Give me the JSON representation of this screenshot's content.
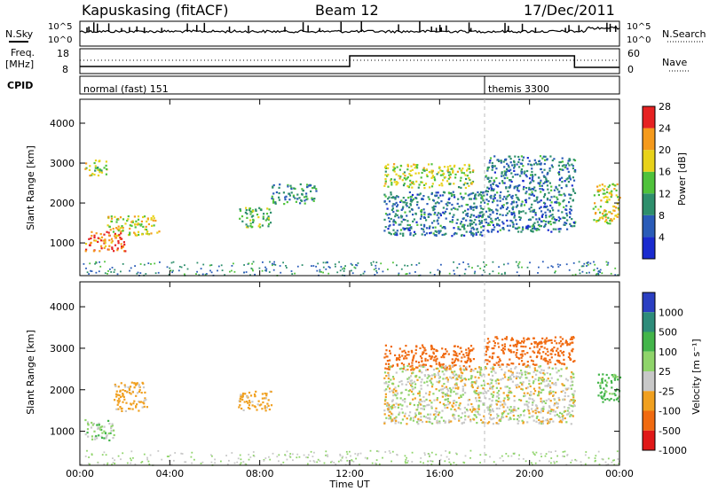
{
  "header": {
    "station": "Kapuskasing (fitACF)",
    "beam": "Beam 12",
    "date": "17/Dec/2011"
  },
  "noise_panel": {
    "left_label": "N.Sky",
    "right_label": "N.Search",
    "left_ticks": [
      "10^5",
      "10^0"
    ],
    "right_ticks": [
      "10^5",
      "10^0"
    ]
  },
  "freq_panel": {
    "left_label_line1": "Freq.",
    "left_label_line2": "[MHz]",
    "left_ticks": [
      "18",
      "8"
    ],
    "right_label": "Nave",
    "right_ticks": [
      "60",
      "0"
    ]
  },
  "cpid_panel": {
    "label": "CPID",
    "modes": [
      {
        "name": "normal (fast) 151",
        "start_hour": 0
      },
      {
        "name": "themis 3300",
        "start_hour": 18
      }
    ]
  },
  "chart_data": [
    {
      "type": "heatmap",
      "name": "power",
      "ylabel": "Slant Range [km]",
      "ylim": [
        180,
        4600
      ],
      "yticks": [
        1000,
        2000,
        3000,
        4000
      ],
      "xlim": [
        0,
        24
      ],
      "colorbar": {
        "label": "Power [dB]",
        "levels": [
          "4",
          "8",
          "12",
          "16",
          "20",
          "24",
          "28"
        ],
        "colors": [
          "#1a2bcf",
          "#2a5cb8",
          "#2e8f6c",
          "#4fc23b",
          "#e8d21a",
          "#f59a1c",
          "#e62222"
        ]
      },
      "echo_regions": [
        {
          "hour_start": 0.2,
          "hour_end": 2.0,
          "range_km": [
            800,
            1300
          ],
          "power_db": 26
        },
        {
          "hour_start": 1.2,
          "hour_end": 3.5,
          "range_km": [
            1200,
            1700
          ],
          "power_db": 20
        },
        {
          "hour_start": 0.2,
          "hour_end": 1.2,
          "range_km": [
            2700,
            3100
          ],
          "power_db": 18
        },
        {
          "hour_start": 7.0,
          "hour_end": 8.5,
          "range_km": [
            1400,
            1900
          ],
          "power_db": 15
        },
        {
          "hour_start": 8.5,
          "hour_end": 10.5,
          "range_km": [
            2000,
            2500
          ],
          "power_db": 12
        },
        {
          "hour_start": 13.5,
          "hour_end": 17.5,
          "range_km": [
            2400,
            3000
          ],
          "power_db": 18
        },
        {
          "hour_start": 13.5,
          "hour_end": 18.0,
          "range_km": [
            1200,
            2300
          ],
          "power_db": 10
        },
        {
          "hour_start": 18.0,
          "hour_end": 22.0,
          "range_km": [
            1300,
            3200
          ],
          "power_db": 10
        },
        {
          "hour_start": 22.8,
          "hour_end": 24.0,
          "range_km": [
            1500,
            2500
          ],
          "power_db": 20
        }
      ]
    },
    {
      "type": "heatmap",
      "name": "velocity",
      "ylabel": "Slant Range [km]",
      "xlabel": "Time UT",
      "ylim": [
        180,
        4600
      ],
      "yticks": [
        1000,
        2000,
        3000,
        4000
      ],
      "xlim": [
        0,
        24
      ],
      "xticks": [
        "00:00",
        "04:00",
        "08:00",
        "12:00",
        "16:00",
        "20:00",
        "00:00"
      ],
      "colorbar": {
        "label": "Velocity [m s⁻¹]",
        "levels": [
          "1000",
          "500",
          "100",
          "25",
          "-25",
          "-100",
          "-500",
          "-1000"
        ],
        "colors": [
          "#2b3fc2",
          "#2e8c7a",
          "#43b54a",
          "#8fd46a",
          "#c8c8c8",
          "#f0a020",
          "#f06a10",
          "#e01818"
        ]
      },
      "echo_regions": [
        {
          "hour_start": 0.2,
          "hour_end": 1.5,
          "range_km": [
            800,
            1300
          ],
          "velocity": 25
        },
        {
          "hour_start": 1.5,
          "hour_end": 3.0,
          "range_km": [
            1500,
            2200
          ],
          "velocity": -100
        },
        {
          "hour_start": 7.0,
          "hour_end": 8.5,
          "range_km": [
            1500,
            2000
          ],
          "velocity": -100
        },
        {
          "hour_start": 13.5,
          "hour_end": 17.5,
          "range_km": [
            2500,
            3100
          ],
          "velocity": -500
        },
        {
          "hour_start": 13.5,
          "hour_end": 22.0,
          "range_km": [
            1200,
            2600
          ],
          "velocity": -25
        },
        {
          "hour_start": 18.0,
          "hour_end": 22.0,
          "range_km": [
            2600,
            3300
          ],
          "velocity": -500
        },
        {
          "hour_start": 23.0,
          "hour_end": 24.0,
          "range_km": [
            1700,
            2400
          ],
          "velocity": 100
        }
      ]
    }
  ]
}
